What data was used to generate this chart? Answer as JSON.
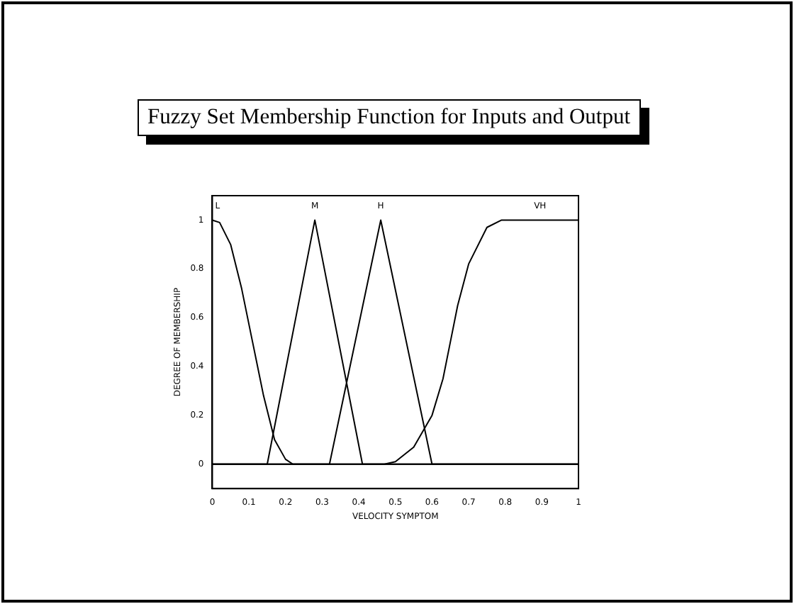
{
  "chart_data": {
    "type": "line",
    "title": "Fuzzy Set Membership Function for Inputs and Output",
    "xlabel": "VELOCITY SYMPTOM",
    "ylabel": "DEGREE OF MEMBERSHIP",
    "series": [
      {
        "name": "L",
        "color": "#000000",
        "x": [
          0,
          0.02,
          0.05,
          0.08,
          0.11,
          0.14,
          0.17,
          0.2,
          0.22,
          1
        ],
        "values": [
          1,
          0.99,
          0.9,
          0.72,
          0.5,
          0.28,
          0.1,
          0.02,
          0,
          0
        ]
      },
      {
        "name": "M",
        "color": "#000000",
        "x": [
          0,
          0.15,
          0.28,
          0.41,
          1
        ],
        "values": [
          0,
          0,
          1,
          0,
          0
        ]
      },
      {
        "name": "H",
        "color": "#000000",
        "x": [
          0,
          0.32,
          0.46,
          0.6,
          1
        ],
        "values": [
          0,
          0,
          1,
          0,
          0
        ]
      },
      {
        "name": "VH",
        "color": "#000000",
        "x": [
          0,
          0.47,
          0.5,
          0.55,
          0.6,
          0.63,
          0.65,
          0.67,
          0.7,
          0.75,
          0.79,
          1
        ],
        "values": [
          0,
          0,
          0.01,
          0.07,
          0.2,
          0.35,
          0.5,
          0.65,
          0.82,
          0.97,
          1,
          1
        ]
      }
    ],
    "xlim": [
      0,
      1
    ],
    "xticks": [
      0,
      0.1,
      0.2,
      0.3,
      0.4,
      0.5,
      0.6,
      0.7,
      0.8,
      0.9,
      1
    ],
    "ylim": [
      -0.1,
      1.1
    ],
    "yticks": [
      0,
      0.2,
      0.4,
      0.6,
      0.8,
      1
    ],
    "grid": false,
    "legend": false,
    "marker": "none",
    "line_style": "solid"
  }
}
